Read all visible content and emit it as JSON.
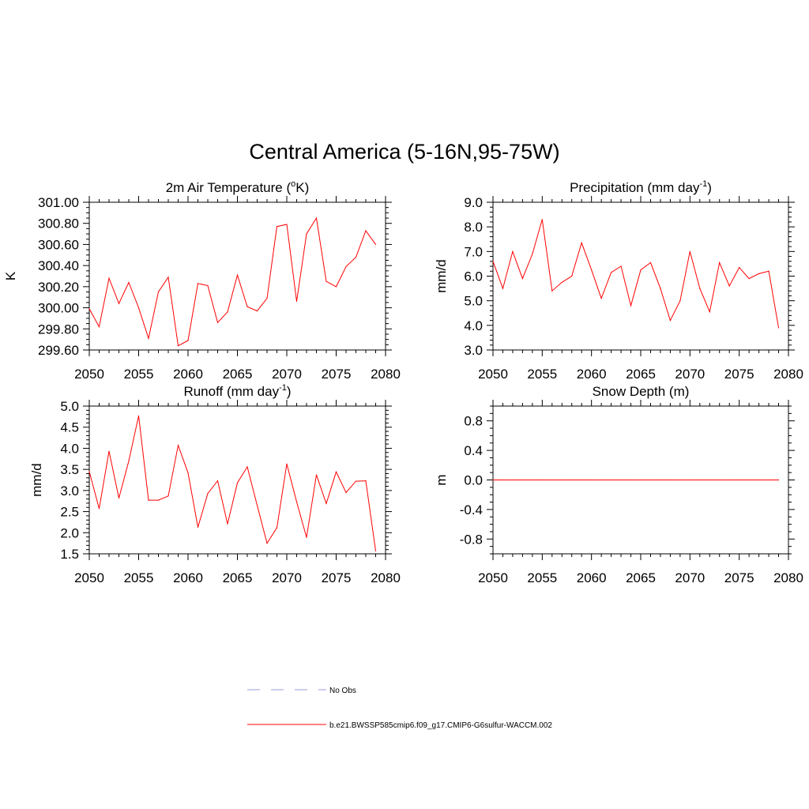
{
  "page": {
    "title": "Central America (5-16N,95-75W)"
  },
  "legend": [
    {
      "label": "No Obs",
      "color": "#9b9bdc",
      "dash": true
    },
    {
      "label": "b.e21.BWSSP585cmip6.f09_g17.CMIP6-G6sulfur-WACCM.002",
      "color": "#ff0000",
      "dash": false
    }
  ],
  "chart_data": [
    {
      "id": "temp",
      "type": "line",
      "title": "2m Air Temperature (°K)",
      "title_parts": [
        "2m Air Temperature (",
        "o",
        "K)"
      ],
      "title_super": "o",
      "xlabel": "",
      "ylabel": "K",
      "xlim": [
        2050,
        2080
      ],
      "ylim": [
        299.6,
        301.0
      ],
      "xticks": [
        2050,
        2055,
        2060,
        2065,
        2070,
        2075,
        2080
      ],
      "yticks": [
        "299.60",
        "299.80",
        "300.00",
        "300.20",
        "300.40",
        "300.60",
        "300.80",
        "301.00"
      ],
      "ytick_values": [
        299.6,
        299.8,
        300.0,
        300.2,
        300.4,
        300.6,
        300.8,
        301.0
      ],
      "y_minor_step": 0.05,
      "series": [
        {
          "color": "#ff0000",
          "x": [
            2050,
            2051,
            2052,
            2053,
            2054,
            2055,
            2056,
            2057,
            2058,
            2059,
            2060,
            2061,
            2062,
            2063,
            2064,
            2065,
            2066,
            2067,
            2068,
            2069,
            2070,
            2071,
            2072,
            2073,
            2074,
            2075,
            2076,
            2077,
            2078,
            2079
          ],
          "values": [
            299.99,
            299.82,
            300.28,
            300.04,
            300.24,
            300.0,
            299.71,
            300.15,
            300.29,
            299.64,
            299.69,
            300.23,
            300.21,
            299.86,
            299.96,
            300.31,
            300.01,
            299.97,
            300.09,
            300.77,
            300.79,
            300.06,
            300.7,
            300.85,
            300.25,
            300.2,
            300.39,
            300.48,
            300.73,
            300.6
          ]
        }
      ]
    },
    {
      "id": "precip",
      "type": "line",
      "title": "Precipitation (mm day-1)",
      "title_parts": [
        "Precipitation (mm day",
        "-1",
        ")"
      ],
      "title_super": "-1",
      "xlabel": "",
      "ylabel": "mm/d",
      "xlim": [
        2050,
        2080
      ],
      "ylim": [
        3.0,
        9.0
      ],
      "xticks": [
        2050,
        2055,
        2060,
        2065,
        2070,
        2075,
        2080
      ],
      "yticks": [
        "3.0",
        "4.0",
        "5.0",
        "6.0",
        "7.0",
        "8.0",
        "9.0"
      ],
      "ytick_values": [
        3,
        4,
        5,
        6,
        7,
        8,
        9
      ],
      "y_minor_step": 0.2,
      "series": [
        {
          "color": "#ff0000",
          "x": [
            2050,
            2051,
            2052,
            2053,
            2054,
            2055,
            2056,
            2057,
            2058,
            2059,
            2060,
            2061,
            2062,
            2063,
            2064,
            2065,
            2066,
            2067,
            2068,
            2069,
            2070,
            2071,
            2072,
            2073,
            2074,
            2075,
            2076,
            2077,
            2078,
            2079
          ],
          "values": [
            6.6,
            5.5,
            7.0,
            5.9,
            6.9,
            8.3,
            5.4,
            5.75,
            6.0,
            7.35,
            6.25,
            5.1,
            6.15,
            6.4,
            4.8,
            6.25,
            6.55,
            5.5,
            4.2,
            5.0,
            7.0,
            5.5,
            4.55,
            6.55,
            5.6,
            6.35,
            5.9,
            6.1,
            6.2,
            3.9
          ]
        }
      ]
    },
    {
      "id": "runoff",
      "type": "line",
      "title": "Runoff (mm day-1)",
      "title_parts": [
        "Runoff (mm day",
        "-1",
        ")"
      ],
      "title_super": "-1",
      "xlabel": "",
      "ylabel": "mm/d",
      "xlim": [
        2050,
        2080
      ],
      "ylim": [
        1.5,
        5.0
      ],
      "xticks": [
        2050,
        2055,
        2060,
        2065,
        2070,
        2075,
        2080
      ],
      "yticks": [
        "1.5",
        "2.0",
        "2.5",
        "3.0",
        "3.5",
        "4.0",
        "4.5",
        "5.0"
      ],
      "ytick_values": [
        1.5,
        2.0,
        2.5,
        3.0,
        3.5,
        4.0,
        4.5,
        5.0
      ],
      "y_minor_step": 0.1,
      "series": [
        {
          "color": "#ff0000",
          "x": [
            2050,
            2051,
            2052,
            2053,
            2054,
            2055,
            2056,
            2057,
            2058,
            2059,
            2060,
            2061,
            2062,
            2063,
            2064,
            2065,
            2066,
            2067,
            2068,
            2069,
            2070,
            2071,
            2072,
            2073,
            2074,
            2075,
            2076,
            2077,
            2078,
            2079
          ],
          "values": [
            3.45,
            2.57,
            3.93,
            2.82,
            3.7,
            4.77,
            2.77,
            2.77,
            2.87,
            4.07,
            3.42,
            2.13,
            2.93,
            3.23,
            2.21,
            3.18,
            3.56,
            2.65,
            1.75,
            2.12,
            3.63,
            2.73,
            1.89,
            3.37,
            2.69,
            3.44,
            2.95,
            3.22,
            3.23,
            1.57
          ]
        }
      ]
    },
    {
      "id": "snow",
      "type": "line",
      "title": "Snow Depth (m)",
      "title_parts": [
        "Snow Depth (m)",
        "",
        ""
      ],
      "title_super": "",
      "xlabel": "",
      "ylabel": "m",
      "xlim": [
        2050,
        2080
      ],
      "ylim": [
        -1.0,
        1.0
      ],
      "xticks": [
        2050,
        2055,
        2060,
        2065,
        2070,
        2075,
        2080
      ],
      "yticks": [
        "-0.8",
        "-0.4",
        "0.0",
        "0.4",
        "0.8"
      ],
      "ytick_values": [
        -0.8,
        -0.4,
        0.0,
        0.4,
        0.8
      ],
      "y_minor_step": 0.1,
      "series": [
        {
          "color": "#ff0000",
          "x": [
            2050,
            2051,
            2052,
            2053,
            2054,
            2055,
            2056,
            2057,
            2058,
            2059,
            2060,
            2061,
            2062,
            2063,
            2064,
            2065,
            2066,
            2067,
            2068,
            2069,
            2070,
            2071,
            2072,
            2073,
            2074,
            2075,
            2076,
            2077,
            2078,
            2079
          ],
          "values": [
            0,
            0,
            0,
            0,
            0,
            0,
            0,
            0,
            0,
            0,
            0,
            0,
            0,
            0,
            0,
            0,
            0,
            0,
            0,
            0,
            0,
            0,
            0,
            0,
            0,
            0,
            0,
            0,
            0,
            0
          ]
        }
      ]
    }
  ]
}
